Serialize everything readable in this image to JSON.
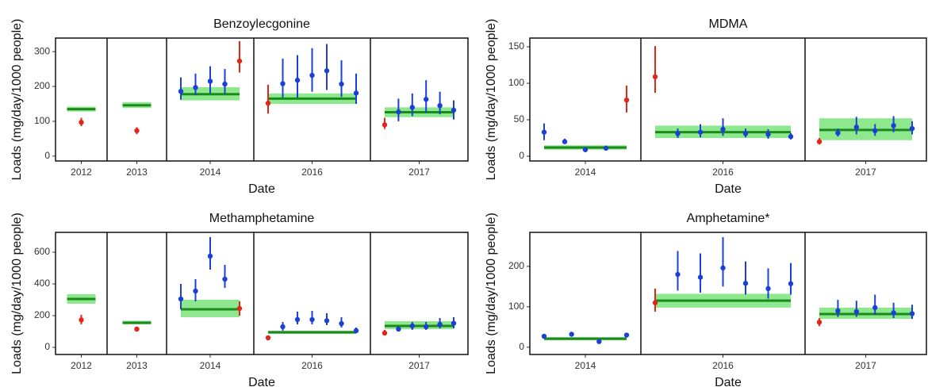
{
  "chart_data": [
    {
      "type": "dotplot",
      "title": "Benzoylecgonine",
      "xlabel": "Date",
      "ylabel": "Loads (mg/day/1000 people)",
      "ylim": [
        -14,
        339
      ],
      "yticks": [
        0,
        100,
        200,
        300
      ],
      "mean_color": "#1a8a1a",
      "band_color": "#8ee88e",
      "facets": [
        {
          "label": "2012",
          "mean": 135,
          "band": [
            128,
            142
          ],
          "points": [
            {
              "value": 97,
              "low": 86,
              "high": 110,
              "color": "#e3261c"
            }
          ]
        },
        {
          "label": "2013",
          "mean": 146,
          "band": [
            138,
            155
          ],
          "points": [
            {
              "value": 73,
              "low": 63,
              "high": 83,
              "color": "#e3261c"
            }
          ]
        },
        {
          "label": "2014",
          "mean": 178,
          "band": [
            160,
            198
          ],
          "points": [
            {
              "value": 186,
              "low": 162,
              "high": 226,
              "color": "#1c3fd8"
            },
            {
              "value": 197,
              "low": 175,
              "high": 237,
              "color": "#1c3fd8"
            },
            {
              "value": 215,
              "low": 180,
              "high": 258,
              "color": "#1c3fd8"
            },
            {
              "value": 207,
              "low": 178,
              "high": 250,
              "color": "#1c3fd8"
            },
            {
              "value": 273,
              "low": 240,
              "high": 330,
              "color": "#e3261c"
            }
          ]
        },
        {
          "label": "2016",
          "mean": 165,
          "band": [
            150,
            180
          ],
          "points": [
            {
              "value": 152,
              "low": 122,
              "high": 205,
              "color": "#e3261c"
            },
            {
              "value": 208,
              "low": 168,
              "high": 280,
              "color": "#1c3fd8"
            },
            {
              "value": 218,
              "low": 168,
              "high": 290,
              "color": "#1c3fd8"
            },
            {
              "value": 232,
              "low": 185,
              "high": 310,
              "color": "#1c3fd8"
            },
            {
              "value": 245,
              "low": 190,
              "high": 322,
              "color": "#1c3fd8"
            },
            {
              "value": 207,
              "low": 170,
              "high": 275,
              "color": "#1c3fd8"
            },
            {
              "value": 181,
              "low": 150,
              "high": 237,
              "color": "#1c3fd8"
            }
          ]
        },
        {
          "label": "2017",
          "mean": 126,
          "band": [
            112,
            140
          ],
          "points": [
            {
              "value": 90,
              "low": 78,
              "high": 110,
              "color": "#e3261c"
            },
            {
              "value": 127,
              "low": 100,
              "high": 165,
              "color": "#1c3fd8"
            },
            {
              "value": 140,
              "low": 115,
              "high": 180,
              "color": "#1c3fd8"
            },
            {
              "value": 163,
              "low": 125,
              "high": 218,
              "color": "#1c3fd8"
            },
            {
              "value": 145,
              "low": 120,
              "high": 185,
              "color": "#1c3fd8"
            },
            {
              "value": 132,
              "low": 105,
              "high": 160,
              "color": "#1c3fd8"
            }
          ]
        }
      ]
    },
    {
      "type": "dotplot",
      "title": "MDMA",
      "xlabel": "Date",
      "ylabel": "Loads (mg/day/1000 people)",
      "ylim": [
        -6.5,
        162
      ],
      "yticks": [
        0,
        50,
        100,
        150
      ],
      "mean_color": "#1a8a1a",
      "band_color": "#8ee88e",
      "facets": [
        {
          "label": "2014",
          "mean": 12,
          "band": [
            9,
            15
          ],
          "points": [
            {
              "value": 33,
              "low": 22,
              "high": 45,
              "color": "#1c3fd8"
            },
            {
              "value": 20,
              "low": 17,
              "high": 24,
              "color": "#1c3fd8"
            },
            {
              "value": 9,
              "low": 7,
              "high": 11,
              "color": "#1c3fd8"
            },
            {
              "value": 11,
              "low": 9,
              "high": 13,
              "color": "#1c3fd8"
            },
            {
              "value": 77,
              "low": 60,
              "high": 97,
              "color": "#e3261c"
            }
          ]
        },
        {
          "label": "2016",
          "mean": 33,
          "band": [
            25,
            42
          ],
          "points": [
            {
              "value": 109,
              "low": 87,
              "high": 151,
              "color": "#e3261c"
            },
            {
              "value": 31,
              "low": 25,
              "high": 38,
              "color": "#1c3fd8"
            },
            {
              "value": 33,
              "low": 26,
              "high": 44,
              "color": "#1c3fd8"
            },
            {
              "value": 37,
              "low": 28,
              "high": 52,
              "color": "#1c3fd8"
            },
            {
              "value": 31,
              "low": 26,
              "high": 38,
              "color": "#1c3fd8"
            },
            {
              "value": 30,
              "low": 24,
              "high": 37,
              "color": "#1c3fd8"
            },
            {
              "value": 27,
              "low": 23,
              "high": 32,
              "color": "#1c3fd8"
            }
          ]
        },
        {
          "label": "2017",
          "mean": 36,
          "band": [
            22,
            52
          ],
          "points": [
            {
              "value": 20,
              "low": 16,
              "high": 25,
              "color": "#e3261c"
            },
            {
              "value": 32,
              "low": 27,
              "high": 38,
              "color": "#1c3fd8"
            },
            {
              "value": 40,
              "low": 30,
              "high": 54,
              "color": "#1c3fd8"
            },
            {
              "value": 35,
              "low": 28,
              "high": 44,
              "color": "#1c3fd8"
            },
            {
              "value": 42,
              "low": 33,
              "high": 55,
              "color": "#1c3fd8"
            },
            {
              "value": 38,
              "low": 30,
              "high": 48,
              "color": "#1c3fd8"
            }
          ]
        }
      ]
    },
    {
      "type": "dotplot",
      "title": "Methamphetamine",
      "xlabel": "Date",
      "ylabel": "Loads (mg/day/1000 people)",
      "ylim": [
        -45,
        725
      ],
      "yticks": [
        0,
        200,
        400,
        600
      ],
      "mean_color": "#1a8a1a",
      "band_color": "#8ee88e",
      "facets": [
        {
          "label": "2012",
          "mean": 305,
          "band": [
            275,
            335
          ],
          "points": [
            {
              "value": 173,
              "low": 145,
              "high": 205,
              "color": "#e3261c"
            }
          ]
        },
        {
          "label": "2013",
          "mean": 155,
          "band": [
            145,
            168
          ],
          "points": [
            {
              "value": 115,
              "low": 100,
              "high": 130,
              "color": "#e3261c"
            }
          ]
        },
        {
          "label": "2014",
          "mean": 240,
          "band": [
            190,
            300
          ],
          "points": [
            {
              "value": 305,
              "low": 240,
              "high": 400,
              "color": "#1c3fd8"
            },
            {
              "value": 355,
              "low": 290,
              "high": 430,
              "color": "#1c3fd8"
            },
            {
              "value": 575,
              "low": 490,
              "high": 695,
              "color": "#1c3fd8"
            },
            {
              "value": 430,
              "low": 375,
              "high": 520,
              "color": "#1c3fd8"
            },
            {
              "value": 245,
              "low": 200,
              "high": 290,
              "color": "#e3261c"
            }
          ]
        },
        {
          "label": "2016",
          "mean": 95,
          "band": [
            85,
            105
          ],
          "points": [
            {
              "value": 60,
              "low": 50,
              "high": 70,
              "color": "#e3261c"
            },
            {
              "value": 130,
              "low": 105,
              "high": 160,
              "color": "#1c3fd8"
            },
            {
              "value": 175,
              "low": 145,
              "high": 225,
              "color": "#1c3fd8"
            },
            {
              "value": 175,
              "low": 145,
              "high": 230,
              "color": "#1c3fd8"
            },
            {
              "value": 168,
              "low": 140,
              "high": 215,
              "color": "#1c3fd8"
            },
            {
              "value": 150,
              "low": 125,
              "high": 190,
              "color": "#1c3fd8"
            },
            {
              "value": 105,
              "low": 90,
              "high": 125,
              "color": "#1c3fd8"
            }
          ]
        },
        {
          "label": "2017",
          "mean": 135,
          "band": [
            115,
            165
          ],
          "points": [
            {
              "value": 90,
              "low": 75,
              "high": 110,
              "color": "#e3261c"
            },
            {
              "value": 115,
              "low": 100,
              "high": 130,
              "color": "#1c3fd8"
            },
            {
              "value": 135,
              "low": 110,
              "high": 160,
              "color": "#1c3fd8"
            },
            {
              "value": 130,
              "low": 110,
              "high": 160,
              "color": "#1c3fd8"
            },
            {
              "value": 145,
              "low": 120,
              "high": 185,
              "color": "#1c3fd8"
            },
            {
              "value": 152,
              "low": 120,
              "high": 190,
              "color": "#1c3fd8"
            }
          ]
        }
      ]
    },
    {
      "type": "dotplot",
      "title": "Amphetamine*",
      "xlabel": "Date",
      "ylabel": "Loads (mg/day/1000 people)",
      "ylim": [
        -18,
        284
      ],
      "yticks": [
        0,
        100,
        200
      ],
      "mean_color": "#1a8a1a",
      "band_color": "#8ee88e",
      "facets": [
        {
          "label": "2014",
          "mean": 21,
          "band": [
            17,
            25
          ],
          "points": [
            {
              "value": 27,
              "low": 22,
              "high": 32,
              "color": "#1c3fd8"
            },
            {
              "value": 32,
              "low": 28,
              "high": 37,
              "color": "#1c3fd8"
            },
            {
              "value": 14,
              "low": 11,
              "high": 17,
              "color": "#1c3fd8"
            },
            {
              "value": 30,
              "low": 27,
              "high": 35,
              "color": "#1c3fd8"
            }
          ]
        },
        {
          "label": "2016",
          "mean": 115,
          "band": [
            98,
            132
          ],
          "points": [
            {
              "value": 110,
              "low": 88,
              "high": 145,
              "color": "#e3261c"
            },
            {
              "value": 180,
              "low": 140,
              "high": 238,
              "color": "#1c3fd8"
            },
            {
              "value": 173,
              "low": 135,
              "high": 232,
              "color": "#1c3fd8"
            },
            {
              "value": 196,
              "low": 150,
              "high": 272,
              "color": "#1c3fd8"
            },
            {
              "value": 158,
              "low": 130,
              "high": 212,
              "color": "#1c3fd8"
            },
            {
              "value": 145,
              "low": 120,
              "high": 195,
              "color": "#1c3fd8"
            },
            {
              "value": 157,
              "low": 130,
              "high": 208,
              "color": "#1c3fd8"
            }
          ]
        },
        {
          "label": "2017",
          "mean": 82,
          "band": [
            70,
            98
          ],
          "points": [
            {
              "value": 62,
              "low": 52,
              "high": 72,
              "color": "#e3261c"
            },
            {
              "value": 90,
              "low": 75,
              "high": 117,
              "color": "#1c3fd8"
            },
            {
              "value": 88,
              "low": 75,
              "high": 115,
              "color": "#1c3fd8"
            },
            {
              "value": 98,
              "low": 80,
              "high": 130,
              "color": "#1c3fd8"
            },
            {
              "value": 85,
              "low": 72,
              "high": 110,
              "color": "#1c3fd8"
            },
            {
              "value": 83,
              "low": 70,
              "high": 105,
              "color": "#1c3fd8"
            }
          ]
        }
      ]
    }
  ]
}
